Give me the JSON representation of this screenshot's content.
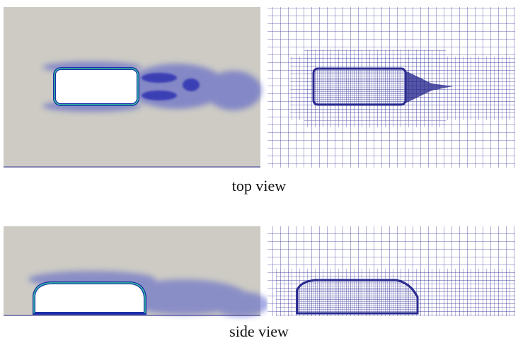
{
  "panels": [
    {
      "caption": "top view"
    },
    {
      "caption": "side view"
    }
  ]
}
